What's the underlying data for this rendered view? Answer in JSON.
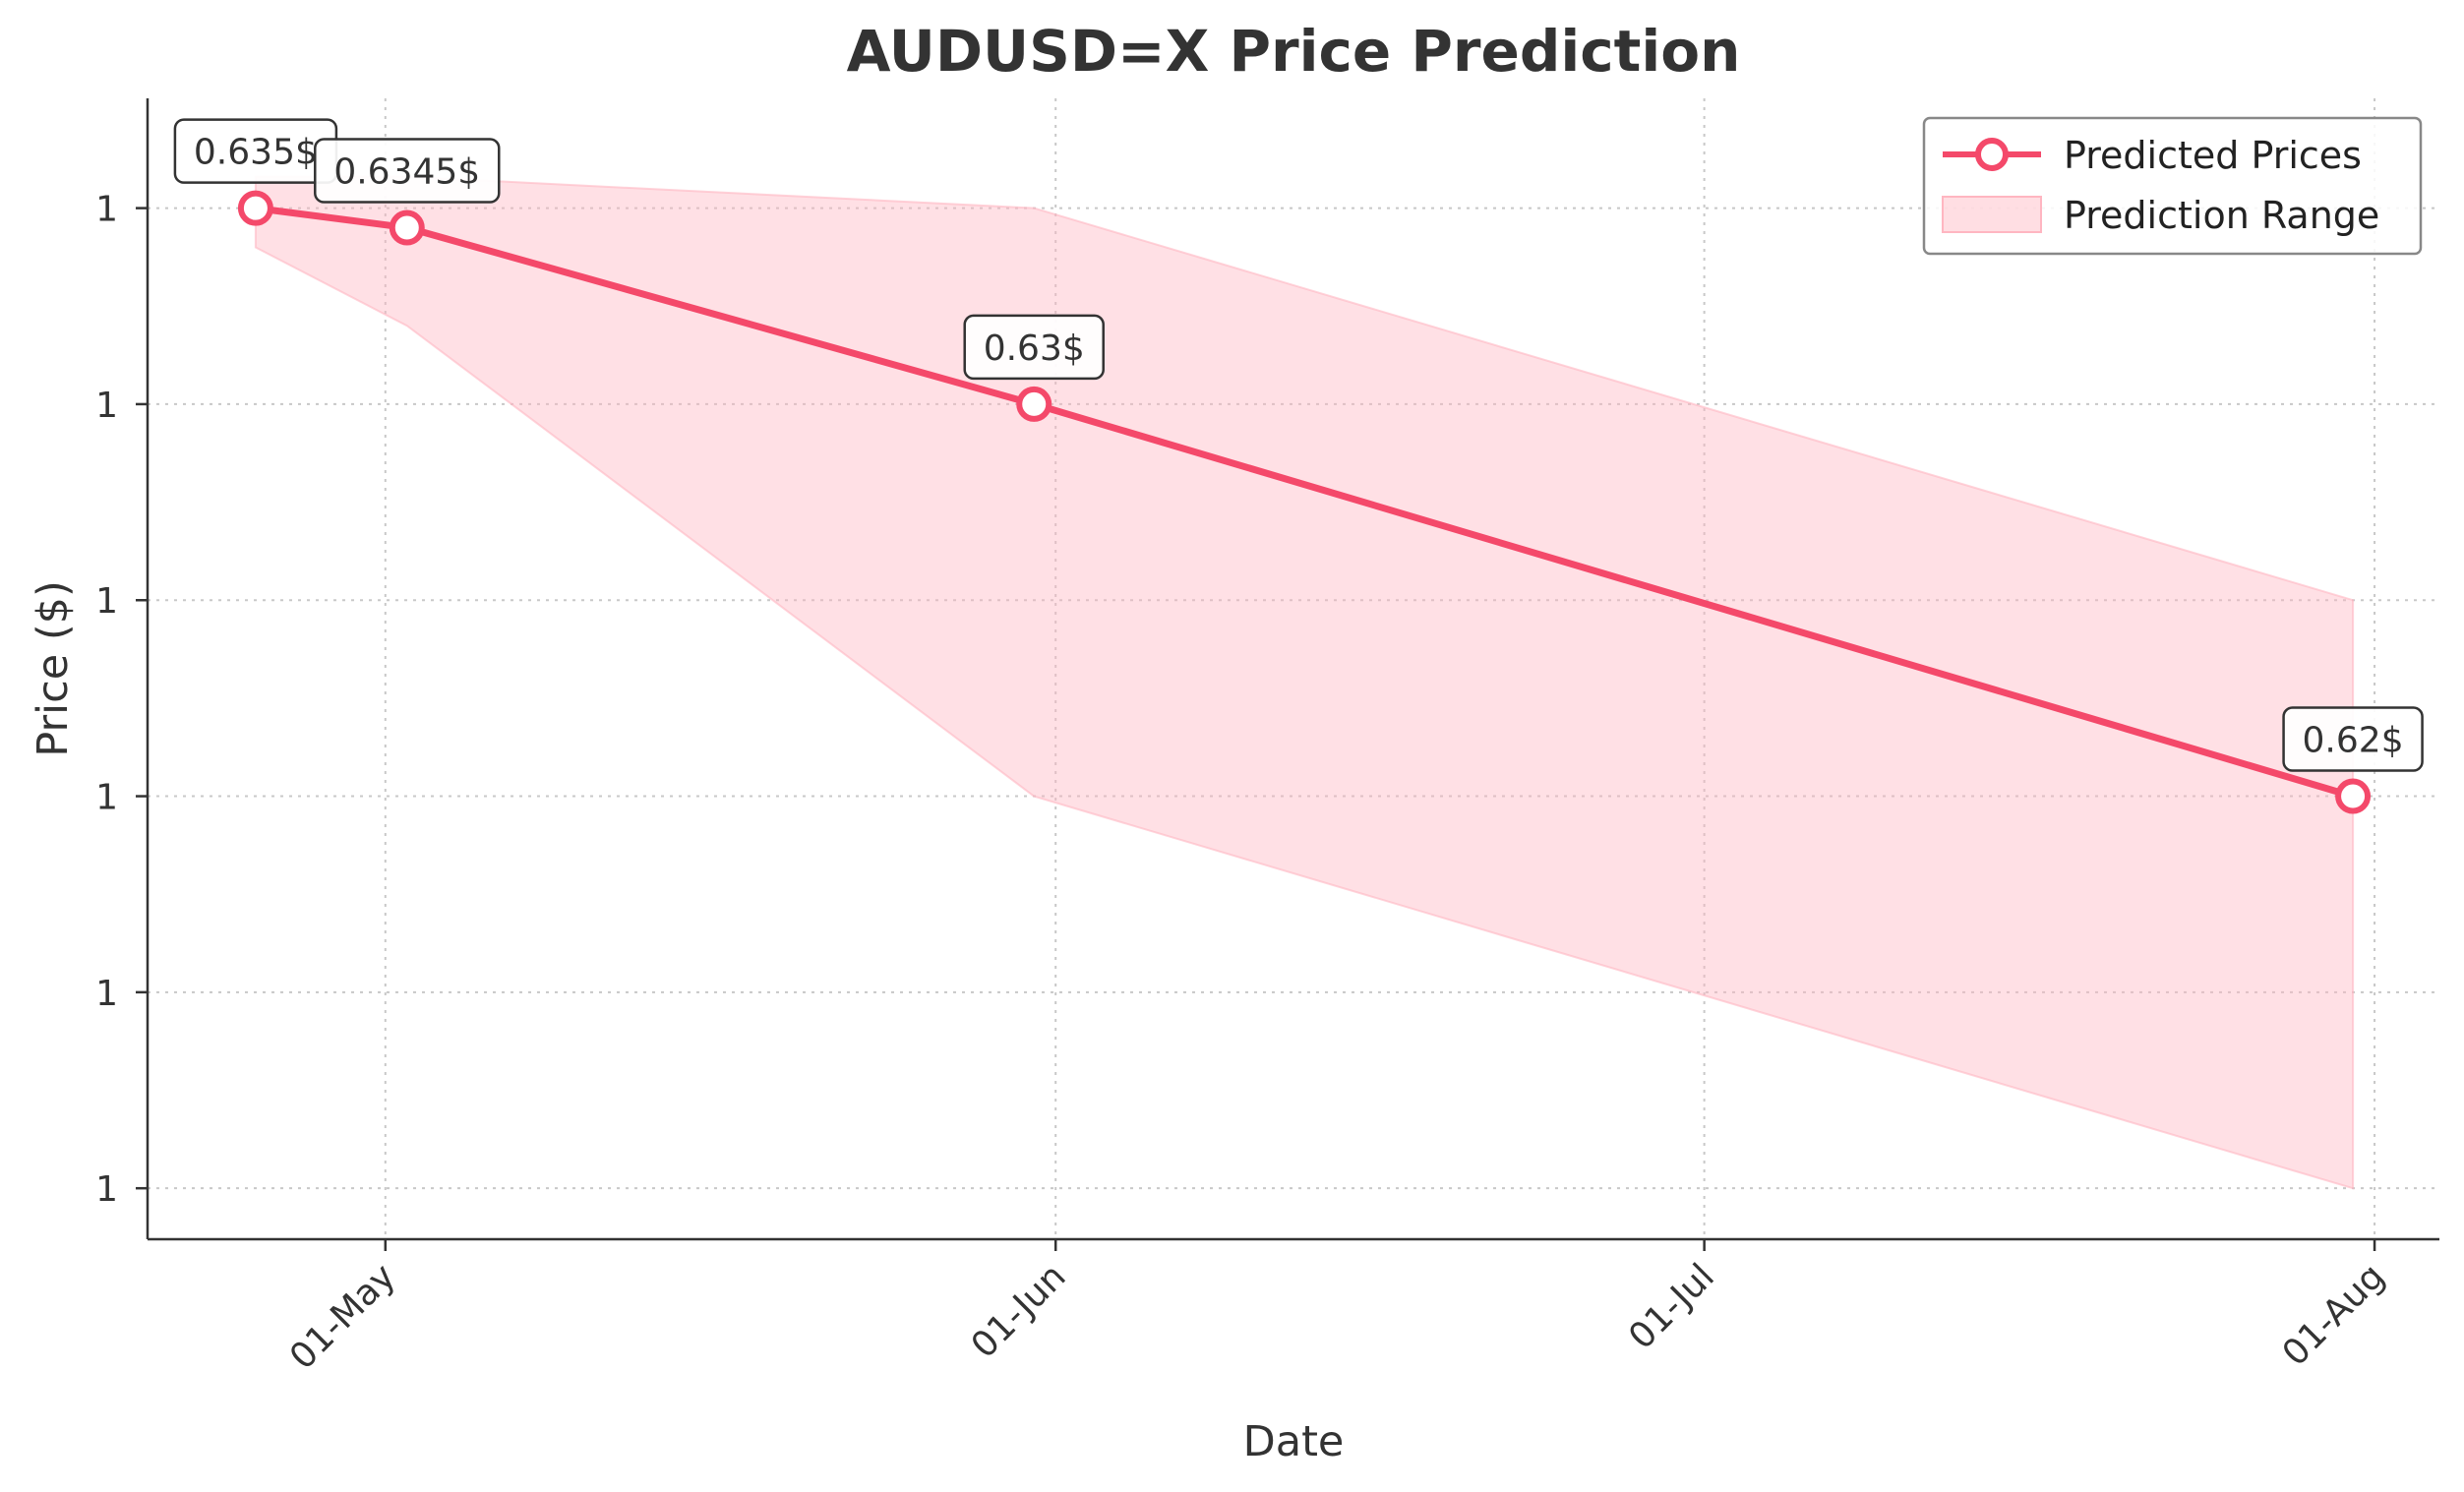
{
  "chart_data": {
    "type": "line",
    "title": "AUDUSD=X Price Prediction",
    "xlabel": "Date",
    "ylabel": "Price ($)",
    "x_ticks": [
      {
        "date": "2024-05-01",
        "label": "01-May"
      },
      {
        "date": "2024-06-01",
        "label": "01-Jun"
      },
      {
        "date": "2024-07-01",
        "label": "01-Jul"
      },
      {
        "date": "2024-08-01",
        "label": "01-Aug"
      }
    ],
    "y_ticks": [
      {
        "value": 0.635,
        "label": "1"
      },
      {
        "value": 0.63,
        "label": "1"
      },
      {
        "value": 0.625,
        "label": "1"
      },
      {
        "value": 0.62,
        "label": "1"
      },
      {
        "value": 0.615,
        "label": "1"
      },
      {
        "value": 0.61,
        "label": "1"
      }
    ],
    "xlim": [
      "2024-04-20",
      "2024-08-04"
    ],
    "ylim": [
      0.6087,
      0.6378
    ],
    "grid": true,
    "legend_position": "top-right",
    "legend": [
      "Predicted Prices",
      "Prediction Range"
    ],
    "series": [
      {
        "name": "Predicted Prices",
        "color": "#f4496a",
        "points": [
          {
            "date": "2024-04-25",
            "value": 0.635,
            "label": "0.635$"
          },
          {
            "date": "2024-05-02",
            "value": 0.6345,
            "label": "0.6345$"
          },
          {
            "date": "2024-05-31",
            "value": 0.63,
            "label": "0.63$"
          },
          {
            "date": "2024-07-31",
            "value": 0.62,
            "label": "0.62$"
          }
        ]
      }
    ],
    "range": {
      "name": "Prediction Range",
      "color": "#ffb6c1",
      "upper": [
        {
          "date": "2024-04-25",
          "value": 0.6358
        },
        {
          "date": "2024-05-02",
          "value": 0.6358
        },
        {
          "date": "2024-05-31",
          "value": 0.635
        },
        {
          "date": "2024-07-31",
          "value": 0.625
        }
      ],
      "lower": [
        {
          "date": "2024-04-25",
          "value": 0.634
        },
        {
          "date": "2024-05-02",
          "value": 0.632
        },
        {
          "date": "2024-05-31",
          "value": 0.62
        },
        {
          "date": "2024-07-31",
          "value": 0.61
        }
      ]
    }
  }
}
